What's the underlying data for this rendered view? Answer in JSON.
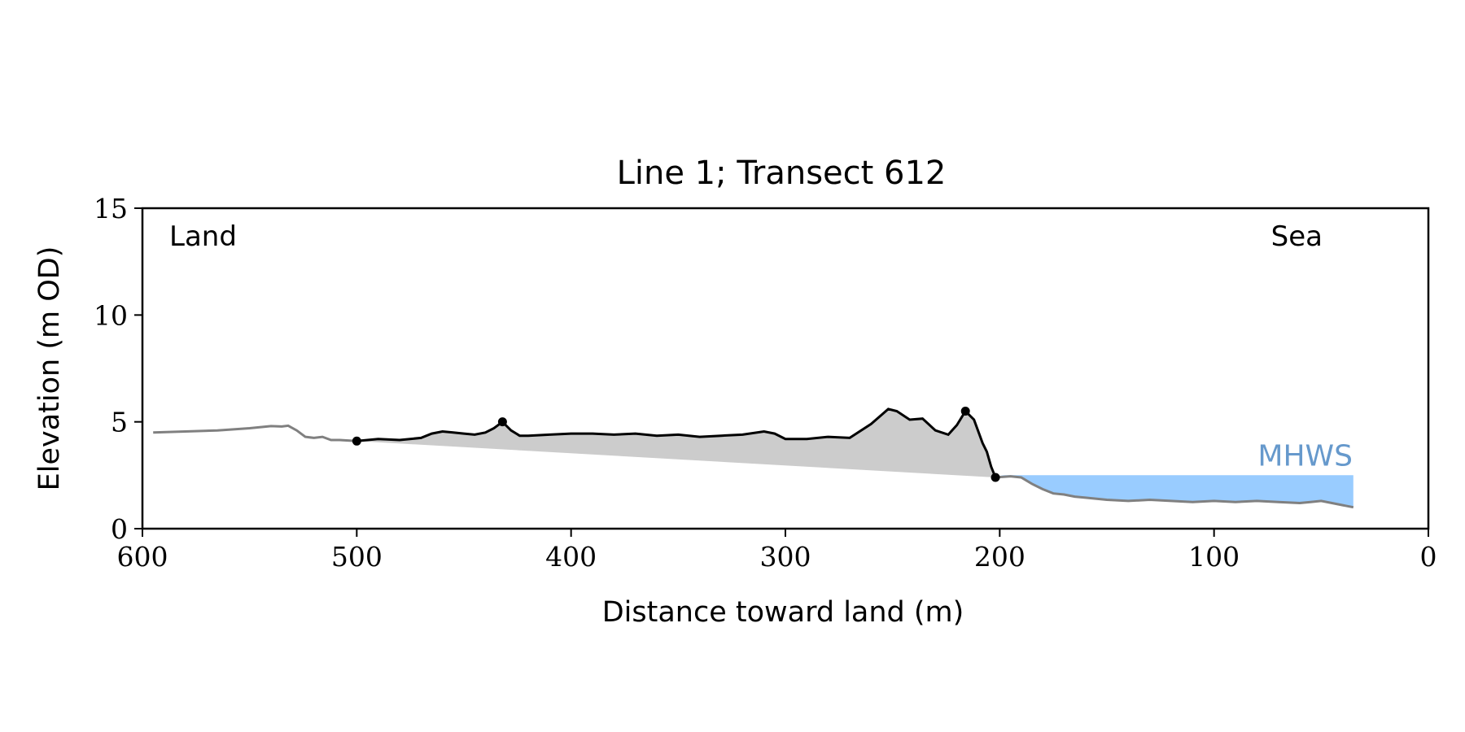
{
  "chart_data": {
    "type": "area",
    "title": "Line 1; Transect 612",
    "xlabel": "Distance toward land (m)",
    "ylabel": "Elevation (m OD)",
    "xlim": [
      600,
      0
    ],
    "ylim": [
      0,
      15
    ],
    "xticks": [
      600,
      500,
      400,
      300,
      200,
      100,
      0
    ],
    "yticks": [
      0,
      5,
      10,
      15
    ],
    "grid": false,
    "annotations": {
      "land": "Land",
      "sea": "Sea",
      "mhws": "MHWS"
    },
    "mhws_elevation": 2.5,
    "mhws_x_range": [
      200,
      35
    ],
    "profile_gray": {
      "x": [
        595,
        580,
        565,
        550,
        540,
        535,
        532,
        528,
        524,
        520,
        516,
        512,
        508,
        500
      ],
      "y": [
        4.5,
        4.55,
        4.6,
        4.7,
        4.8,
        4.78,
        4.82,
        4.6,
        4.3,
        4.25,
        4.3,
        4.15,
        4.15,
        4.1
      ]
    },
    "profile_black": {
      "x": [
        500,
        495,
        490,
        480,
        470,
        465,
        460,
        455,
        450,
        445,
        440,
        436,
        432,
        428,
        424,
        420,
        410,
        400,
        390,
        380,
        370,
        360,
        350,
        340,
        330,
        320,
        310,
        305,
        300,
        290,
        280,
        270,
        260,
        252,
        248,
        242,
        236,
        230,
        224,
        220,
        216,
        212,
        208,
        206,
        204,
        202
      ],
      "y": [
        4.1,
        4.15,
        4.2,
        4.15,
        4.25,
        4.45,
        4.55,
        4.5,
        4.45,
        4.4,
        4.5,
        4.7,
        5.0,
        4.6,
        4.35,
        4.35,
        4.4,
        4.45,
        4.45,
        4.4,
        4.45,
        4.35,
        4.4,
        4.3,
        4.35,
        4.4,
        4.55,
        4.45,
        4.2,
        4.2,
        4.3,
        4.25,
        4.9,
        5.6,
        5.5,
        5.1,
        5.15,
        4.6,
        4.4,
        4.85,
        5.5,
        5.1,
        4.0,
        3.6,
        2.9,
        2.4
      ]
    },
    "profile_sea": {
      "x": [
        202,
        195,
        190,
        185,
        180,
        175,
        170,
        165,
        160,
        150,
        140,
        130,
        120,
        110,
        100,
        90,
        80,
        70,
        60,
        55,
        50,
        45,
        40,
        35
      ],
      "y": [
        2.4,
        2.45,
        2.4,
        2.1,
        1.85,
        1.65,
        1.6,
        1.5,
        1.45,
        1.35,
        1.3,
        1.35,
        1.3,
        1.25,
        1.3,
        1.25,
        1.3,
        1.25,
        1.2,
        1.25,
        1.3,
        1.2,
        1.1,
        1.0
      ]
    },
    "markers": {
      "x": [
        500,
        432,
        216,
        202
      ],
      "y": [
        4.1,
        5.0,
        5.5,
        2.4
      ]
    },
    "colors": {
      "fill": "#cccccc",
      "water": "#99ccff",
      "mhws_label": "#6699cc",
      "gray_line": "#808080",
      "black_line": "#000000"
    }
  }
}
